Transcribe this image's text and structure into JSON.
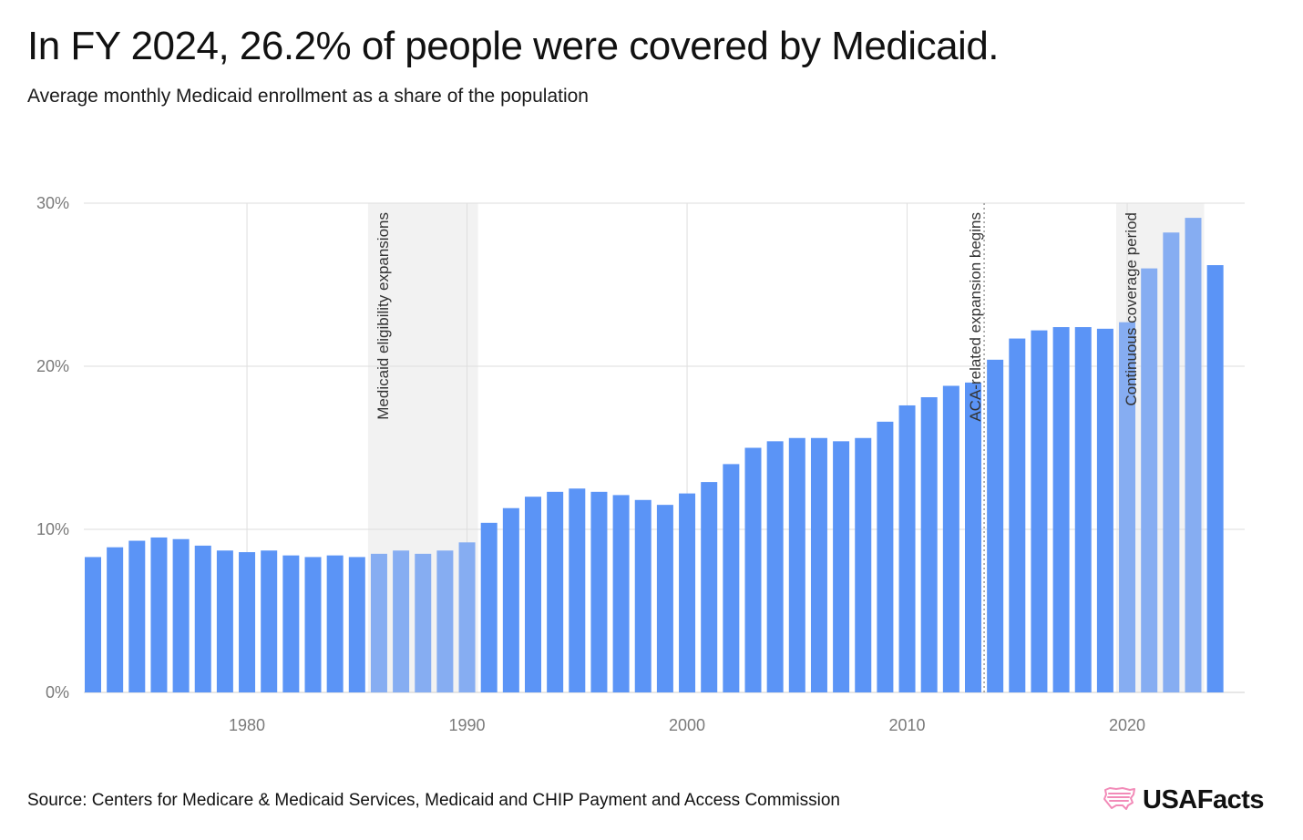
{
  "header": {
    "title": "In FY 2024, 26.2% of people were covered by Medicaid.",
    "subtitle": "Average monthly Medicaid enrollment as a share of the population"
  },
  "footer": {
    "source": "Source: Centers for Medicare & Medicaid Services, Medicaid and CHIP Payment and Access Commission",
    "brand": "USAFacts",
    "brand_icon": "us-flag-map-icon"
  },
  "colors": {
    "bar": "#5b94f6",
    "bar_highlight": "#86adf2",
    "band": "#f2f2f2",
    "grid": "#dedede",
    "axis_text": "#7a7a7a",
    "brand_icon": "#f28bb8"
  },
  "chart_data": {
    "type": "bar",
    "title": "In FY 2024, 26.2% of people were covered by Medicaid.",
    "subtitle": "Average monthly Medicaid enrollment as a share of the population",
    "xlabel": "",
    "ylabel": "",
    "ylim": [
      0,
      30
    ],
    "yticks": [
      0,
      10,
      20,
      30
    ],
    "ytick_labels": [
      "0%",
      "10%",
      "20%",
      "30%"
    ],
    "xticks": [
      1980,
      1990,
      2000,
      2010,
      2020
    ],
    "xtick_labels": [
      "1980",
      "1990",
      "2000",
      "2010",
      "2020"
    ],
    "grid": true,
    "x": [
      1973,
      1974,
      1975,
      1976,
      1977,
      1978,
      1979,
      1980,
      1981,
      1982,
      1983,
      1984,
      1985,
      1986,
      1987,
      1988,
      1989,
      1990,
      1991,
      1992,
      1993,
      1994,
      1995,
      1996,
      1997,
      1998,
      1999,
      2000,
      2001,
      2002,
      2003,
      2004,
      2005,
      2006,
      2007,
      2008,
      2009,
      2010,
      2011,
      2012,
      2013,
      2014,
      2015,
      2016,
      2017,
      2018,
      2019,
      2020,
      2021,
      2022,
      2023,
      2024
    ],
    "values": [
      8.3,
      8.9,
      9.3,
      9.5,
      9.4,
      9.0,
      8.7,
      8.6,
      8.7,
      8.4,
      8.3,
      8.4,
      8.3,
      8.5,
      8.7,
      8.5,
      8.7,
      9.2,
      10.4,
      11.3,
      12.0,
      12.3,
      12.5,
      12.3,
      12.1,
      11.8,
      11.5,
      12.2,
      12.9,
      14.0,
      15.0,
      15.4,
      15.6,
      15.6,
      15.4,
      15.6,
      16.6,
      17.6,
      18.1,
      18.8,
      19.0,
      20.4,
      21.7,
      22.2,
      22.4,
      22.4,
      22.3,
      22.7,
      26.0,
      28.2,
      29.1,
      26.2
    ],
    "highlighted_ranges": [
      {
        "label": "Medicaid eligibility expansions",
        "start": 1986,
        "end": 1990
      },
      {
        "label": "Continuous coverage period",
        "start": 2020,
        "end": 2023
      }
    ],
    "annotations": [
      {
        "label": "ACA-related expansion begins",
        "x": 2014,
        "style": "dotted-line"
      }
    ]
  }
}
